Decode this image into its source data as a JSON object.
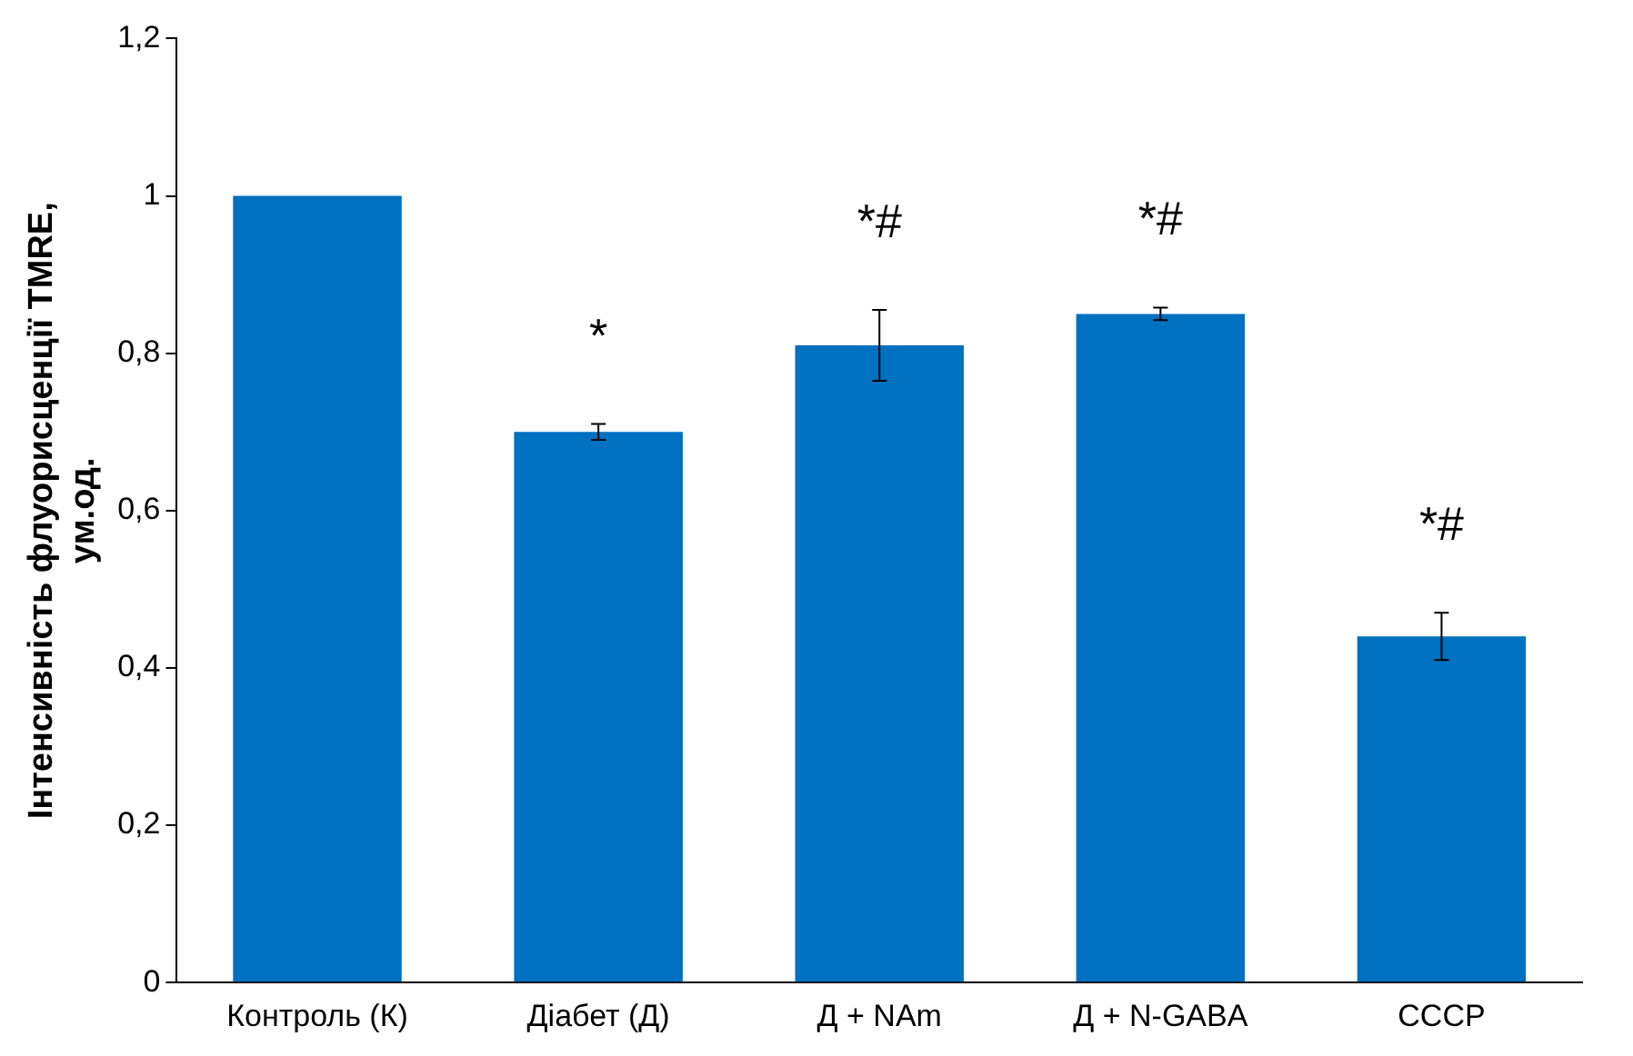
{
  "chart_data": {
    "type": "bar",
    "ylabel": "Інтенсивність флуорисценції TMRE, ум.од.",
    "categories": [
      "Контроль (К)",
      "Діабет (Д)",
      "Д + NAm",
      "Д + N-GABA",
      "CCCP"
    ],
    "values": [
      1.0,
      0.7,
      0.81,
      0.85,
      0.44
    ],
    "errors": [
      null,
      0.01,
      0.045,
      0.008,
      0.03
    ],
    "color": "#0070c0",
    "ylim": [
      0,
      1.2
    ],
    "yticks": [
      0,
      {
        "value": 0.2,
        "label": "0,2"
      },
      {
        "value": 0.4,
        "label": "0,4"
      },
      {
        "value": 0.6,
        "label": "0,6"
      },
      {
        "value": 0.8,
        "label": "0,8"
      },
      1,
      {
        "value": 1.2,
        "label": "1,2"
      }
    ],
    "grid": false,
    "legend": false,
    "annotations": [
      "*",
      "*#",
      "*#",
      "*#"
    ]
  }
}
